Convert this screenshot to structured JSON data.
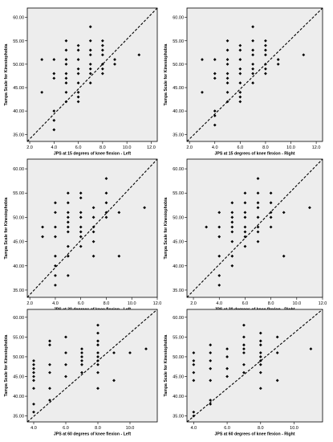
{
  "chart_data": [
    {
      "type": "scatter",
      "title": "",
      "xlabel": "JPS at 15 degrees of knee flexion - Left",
      "ylabel": "Tampa Scale for Kinesiophobia",
      "xlim": [
        1.8,
        12.5
      ],
      "ylim": [
        33.5,
        62
      ],
      "xticks": [
        "2.0",
        "4.0",
        "6.0",
        "8.0",
        "10.0",
        "12.0"
      ],
      "yticks": [
        "35.00",
        "40.00",
        "45.00",
        "50.00",
        "55.00",
        "60.00"
      ],
      "reference_line": [
        [
          1.8,
          33.5
        ],
        [
          12.5,
          62
        ]
      ],
      "points": [
        [
          3,
          44
        ],
        [
          3,
          51
        ],
        [
          4,
          36
        ],
        [
          4,
          38
        ],
        [
          4,
          40
        ],
        [
          4,
          47
        ],
        [
          4,
          48
        ],
        [
          4,
          51
        ],
        [
          5,
          42
        ],
        [
          5,
          44
        ],
        [
          5,
          46
        ],
        [
          5,
          47
        ],
        [
          5,
          48
        ],
        [
          5,
          50
        ],
        [
          5,
          51
        ],
        [
          5,
          53
        ],
        [
          5,
          55
        ],
        [
          6,
          42
        ],
        [
          6,
          43
        ],
        [
          6,
          44
        ],
        [
          6,
          46
        ],
        [
          6,
          48
        ],
        [
          6,
          49
        ],
        [
          6,
          51
        ],
        [
          6,
          53
        ],
        [
          6,
          54
        ],
        [
          7,
          46
        ],
        [
          7,
          48
        ],
        [
          7,
          49
        ],
        [
          7,
          50
        ],
        [
          7,
          52
        ],
        [
          7,
          53
        ],
        [
          7,
          55
        ],
        [
          7,
          58
        ],
        [
          8,
          48
        ],
        [
          8,
          49
        ],
        [
          8,
          50
        ],
        [
          8,
          52
        ],
        [
          8,
          53
        ],
        [
          8,
          54
        ],
        [
          8,
          55
        ],
        [
          9,
          50
        ],
        [
          9,
          51
        ],
        [
          11,
          52
        ]
      ]
    },
    {
      "type": "scatter",
      "title": "",
      "xlabel": "JPS at 15 degrees of knee flexion - Right",
      "ylabel": "Tampa Scale for Kinesiophobia",
      "xlim": [
        1.8,
        12.5
      ],
      "ylim": [
        33.5,
        62
      ],
      "xticks": [
        "2.0",
        "4.0",
        "6.0",
        "8.0",
        "10.0",
        "12.0"
      ],
      "yticks": [
        "35.00",
        "40.00",
        "45.00",
        "50.00",
        "55.00",
        "60.00"
      ],
      "reference_line": [
        [
          1.8,
          33.5
        ],
        [
          12.5,
          62
        ]
      ],
      "points": [
        [
          3,
          44
        ],
        [
          3,
          51
        ],
        [
          4,
          37
        ],
        [
          4,
          39
        ],
        [
          4,
          40
        ],
        [
          4,
          47
        ],
        [
          4,
          48
        ],
        [
          4,
          51
        ],
        [
          5,
          42
        ],
        [
          5,
          44
        ],
        [
          5,
          46
        ],
        [
          5,
          47
        ],
        [
          5,
          48
        ],
        [
          5,
          50
        ],
        [
          5,
          51
        ],
        [
          5,
          53
        ],
        [
          5,
          55
        ],
        [
          6,
          42
        ],
        [
          6,
          43
        ],
        [
          6,
          44
        ],
        [
          6,
          46
        ],
        [
          6,
          48
        ],
        [
          6,
          49
        ],
        [
          6,
          51
        ],
        [
          6,
          53
        ],
        [
          6,
          54
        ],
        [
          7,
          46
        ],
        [
          7,
          48
        ],
        [
          7,
          49
        ],
        [
          7,
          50
        ],
        [
          7,
          52
        ],
        [
          7,
          53
        ],
        [
          7,
          55
        ],
        [
          7,
          58
        ],
        [
          8,
          48
        ],
        [
          8,
          49
        ],
        [
          8,
          50
        ],
        [
          8,
          52
        ],
        [
          8,
          53
        ],
        [
          8,
          54
        ],
        [
          8,
          55
        ],
        [
          9,
          50
        ],
        [
          9,
          51
        ],
        [
          11,
          52
        ]
      ]
    },
    {
      "type": "scatter",
      "title": "",
      "xlabel": "JPS at 30 degrees of knee flexion - Left",
      "ylabel": "Tampa Scale for Kinesiophobia",
      "xlim": [
        1.8,
        12.0
      ],
      "ylim": [
        33.5,
        62
      ],
      "xticks": [
        "2.0",
        "4.0",
        "6.0",
        "8.0",
        "10.0",
        "12.0"
      ],
      "yticks": [
        "35.00",
        "40.00",
        "45.00",
        "50.00",
        "55.00",
        "60.00"
      ],
      "reference_line": [
        [
          1.8,
          33.5
        ],
        [
          12.0,
          62
        ]
      ],
      "points": [
        [
          3,
          46
        ],
        [
          3,
          48
        ],
        [
          4,
          36
        ],
        [
          4,
          38
        ],
        [
          4,
          40
        ],
        [
          4,
          42
        ],
        [
          4,
          46
        ],
        [
          4,
          48
        ],
        [
          4,
          51
        ],
        [
          4,
          53
        ],
        [
          5,
          38
        ],
        [
          5,
          42
        ],
        [
          5,
          44
        ],
        [
          5,
          47
        ],
        [
          5,
          48
        ],
        [
          5,
          49
        ],
        [
          5,
          50
        ],
        [
          5,
          51
        ],
        [
          5,
          53
        ],
        [
          5,
          55
        ],
        [
          6,
          44
        ],
        [
          6,
          46
        ],
        [
          6,
          47
        ],
        [
          6,
          48
        ],
        [
          6,
          50
        ],
        [
          6,
          51
        ],
        [
          6,
          54
        ],
        [
          6,
          55
        ],
        [
          7,
          42
        ],
        [
          7,
          45
        ],
        [
          7,
          47
        ],
        [
          7,
          48
        ],
        [
          7,
          50
        ],
        [
          7,
          52
        ],
        [
          8,
          50
        ],
        [
          8,
          51
        ],
        [
          8,
          53
        ],
        [
          8,
          55
        ],
        [
          8,
          58
        ],
        [
          9,
          42
        ],
        [
          9,
          51
        ],
        [
          11,
          52
        ]
      ]
    },
    {
      "type": "scatter",
      "title": "",
      "xlabel": "JPS at 30 degrees of knee flexion - Right",
      "ylabel": "Tampa Scale for Kinesiophobia",
      "xlim": [
        1.5,
        12.0
      ],
      "ylim": [
        33.5,
        62
      ],
      "xticks": [
        "2.0",
        "4.0",
        "6.0",
        "8.0",
        "10.0",
        "12.0"
      ],
      "yticks": [
        "35.00",
        "40.00",
        "45.00",
        "50.00",
        "55.00",
        "60.00"
      ],
      "reference_line": [
        [
          1.5,
          33.5
        ],
        [
          12.0,
          62
        ]
      ],
      "points": [
        [
          3,
          48
        ],
        [
          4,
          36
        ],
        [
          4,
          38
        ],
        [
          4,
          42
        ],
        [
          4,
          46
        ],
        [
          4,
          48
        ],
        [
          4,
          51
        ],
        [
          5,
          40
        ],
        [
          5,
          42
        ],
        [
          5,
          45
        ],
        [
          5,
          47
        ],
        [
          5,
          48
        ],
        [
          5,
          49
        ],
        [
          5,
          50
        ],
        [
          5,
          51
        ],
        [
          5,
          53
        ],
        [
          6,
          44
        ],
        [
          6,
          46
        ],
        [
          6,
          47
        ],
        [
          6,
          48
        ],
        [
          6,
          50
        ],
        [
          6,
          51
        ],
        [
          6,
          53
        ],
        [
          6,
          55
        ],
        [
          7,
          45
        ],
        [
          7,
          47
        ],
        [
          7,
          48
        ],
        [
          7,
          50
        ],
        [
          7,
          52
        ],
        [
          7,
          53
        ],
        [
          7,
          55
        ],
        [
          7,
          58
        ],
        [
          8,
          48
        ],
        [
          8,
          50
        ],
        [
          8,
          51
        ],
        [
          8,
          53
        ],
        [
          8,
          55
        ],
        [
          9,
          42
        ],
        [
          9,
          51
        ],
        [
          11,
          52
        ]
      ]
    },
    {
      "type": "scatter",
      "title": "",
      "xlabel": "JPS at 60 degrees of knee flexion - Left",
      "ylabel": "Tampa Scale for Kinesiophobia",
      "xlim": [
        3.6,
        11.7
      ],
      "ylim": [
        33.5,
        62
      ],
      "xticks": [
        "4.0",
        "6.0",
        "8.0",
        "10.0"
      ],
      "yticks": [
        "35.00",
        "40.00",
        "45.00",
        "50.00",
        "55.00",
        "60.00"
      ],
      "reference_line": [
        [
          3.6,
          33.5
        ],
        [
          11.7,
          62
        ]
      ],
      "points": [
        [
          4,
          36
        ],
        [
          4,
          38
        ],
        [
          4,
          42
        ],
        [
          4,
          44
        ],
        [
          4,
          45
        ],
        [
          4,
          46
        ],
        [
          4,
          47
        ],
        [
          4,
          48
        ],
        [
          4,
          49
        ],
        [
          5,
          39
        ],
        [
          5,
          42
        ],
        [
          5,
          46
        ],
        [
          5,
          48
        ],
        [
          5,
          53
        ],
        [
          5,
          54
        ],
        [
          6,
          45
        ],
        [
          6,
          48
        ],
        [
          6,
          51
        ],
        [
          6,
          55
        ],
        [
          7,
          46
        ],
        [
          7,
          48
        ],
        [
          7,
          49
        ],
        [
          7,
          50
        ],
        [
          7,
          51
        ],
        [
          7,
          52
        ],
        [
          8,
          42
        ],
        [
          8,
          46
        ],
        [
          8,
          48
        ],
        [
          8,
          49
        ],
        [
          8,
          50
        ],
        [
          8,
          51
        ],
        [
          8,
          53
        ],
        [
          8,
          54
        ],
        [
          8,
          56
        ],
        [
          8,
          58
        ],
        [
          9,
          44
        ],
        [
          9,
          51
        ],
        [
          10,
          51
        ],
        [
          11,
          52
        ]
      ]
    },
    {
      "type": "scatter",
      "title": "",
      "xlabel": "JPS at 60 degrees of knee flexion - Right",
      "ylabel": "Tampa Scale for Kinesiophobia",
      "xlim": [
        3.6,
        11.7
      ],
      "ylim": [
        33.5,
        62
      ],
      "xticks": [
        "4.0",
        "6.0",
        "8.0",
        "10.0"
      ],
      "yticks": [
        "35.00",
        "40.00",
        "45.00",
        "50.00",
        "55.00",
        "60.00"
      ],
      "reference_line": [
        [
          3.6,
          33.5
        ],
        [
          11.7,
          62
        ]
      ],
      "points": [
        [
          4,
          35
        ],
        [
          4,
          36
        ],
        [
          4,
          44
        ],
        [
          4,
          46
        ],
        [
          4,
          48
        ],
        [
          4,
          49
        ],
        [
          4,
          51
        ],
        [
          5,
          38
        ],
        [
          5,
          39
        ],
        [
          5,
          44
        ],
        [
          5,
          47
        ],
        [
          5,
          49
        ],
        [
          5,
          51
        ],
        [
          5,
          53
        ],
        [
          6,
          45
        ],
        [
          6,
          47
        ],
        [
          6,
          50
        ],
        [
          6,
          52
        ],
        [
          7,
          46
        ],
        [
          7,
          48
        ],
        [
          7,
          51
        ],
        [
          7,
          52
        ],
        [
          7,
          53
        ],
        [
          7,
          55
        ],
        [
          7,
          58
        ],
        [
          8,
          42
        ],
        [
          8,
          46
        ],
        [
          8,
          48
        ],
        [
          8,
          49
        ],
        [
          8,
          50
        ],
        [
          8,
          51
        ],
        [
          8,
          53
        ],
        [
          8,
          54
        ],
        [
          8,
          56
        ],
        [
          9,
          44
        ],
        [
          9,
          51
        ],
        [
          9,
          55
        ],
        [
          11,
          52
        ]
      ]
    }
  ]
}
